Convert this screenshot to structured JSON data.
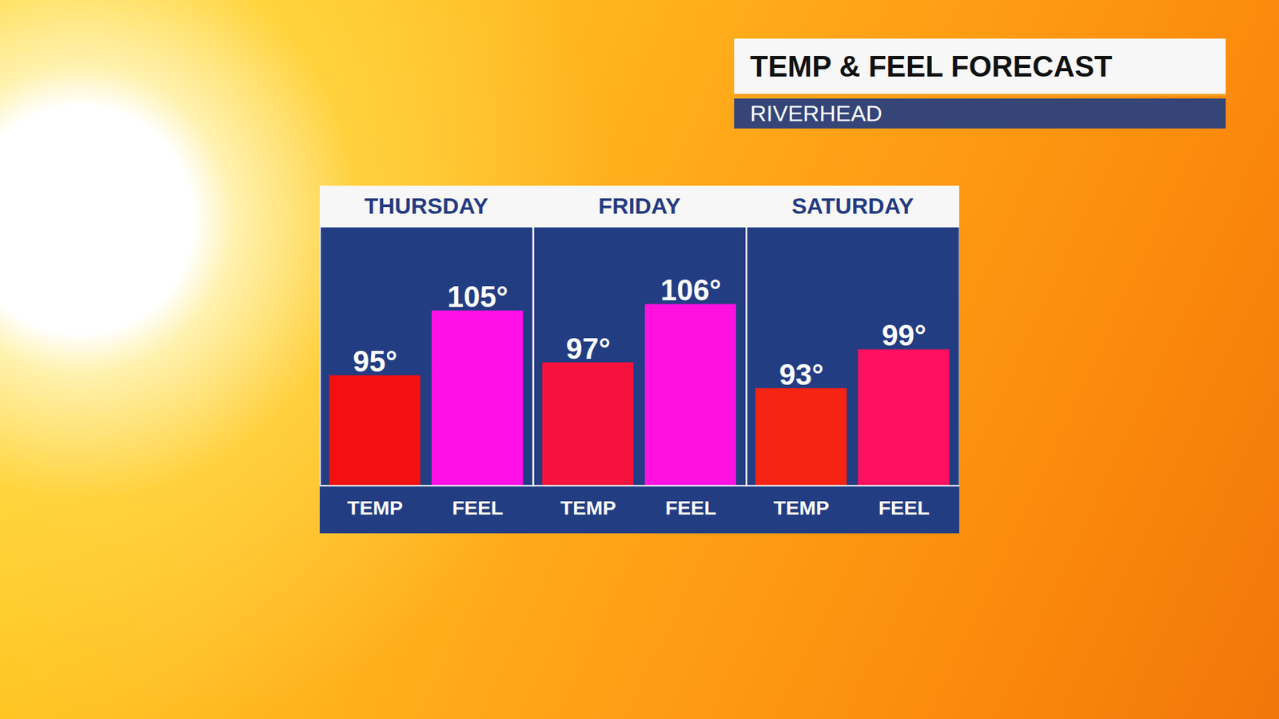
{
  "chart_data": {
    "type": "bar",
    "title": "TEMP & FEEL FORECAST",
    "subtitle": "RIVERHEAD",
    "categories": [
      "THURSDAY",
      "FRIDAY",
      "SATURDAY"
    ],
    "series": [
      {
        "name": "TEMP",
        "values": [
          95,
          97,
          93
        ],
        "value_labels": [
          "95°",
          "97°",
          "93°"
        ],
        "colors": [
          "#f21010",
          "#f5123c",
          "#f52312"
        ]
      },
      {
        "name": "FEEL",
        "values": [
          105,
          106,
          99
        ],
        "value_labels": [
          "105°",
          "106°",
          "99°"
        ],
        "colors": [
          "#ff10e6",
          "#ff12e0",
          "#ff1060"
        ]
      }
    ],
    "ylim": [
      78,
      118
    ],
    "yticks": [],
    "tick_labels": "x",
    "data_labels": true
  }
}
